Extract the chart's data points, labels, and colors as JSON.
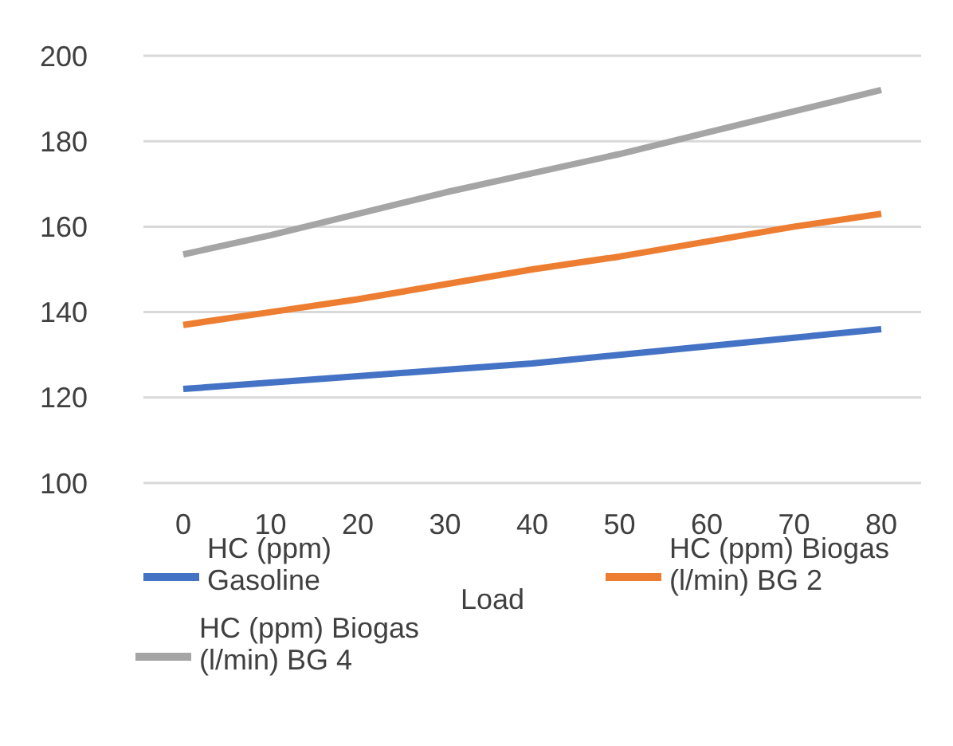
{
  "chart_data": {
    "type": "line",
    "xlabel": "Load",
    "categories": [
      "0",
      "10",
      "20",
      "30",
      "40",
      "50",
      "60",
      "70",
      "80"
    ],
    "series": [
      {
        "name": "HC (ppm) Gasoline",
        "color": "#4472c4",
        "values": [
          122,
          123.5,
          125,
          126.5,
          128,
          130,
          132,
          134,
          136
        ]
      },
      {
        "name": "HC (ppm) Biogas (l/min) BG 2",
        "color": "#ed7d31",
        "values": [
          137,
          140,
          143,
          146.5,
          150,
          153,
          156.5,
          160,
          163
        ]
      },
      {
        "name": "HC (ppm) Biogas (l/min) BG 4",
        "color": "#a5a5a5",
        "values": [
          153.5,
          158,
          163,
          168,
          172.5,
          177,
          182,
          187,
          192
        ]
      }
    ],
    "ylim": [
      100,
      200
    ],
    "yticks": [
      100,
      120,
      140,
      160,
      180,
      200
    ],
    "grid": "y",
    "legend": "bottom",
    "line_style": "solid"
  }
}
